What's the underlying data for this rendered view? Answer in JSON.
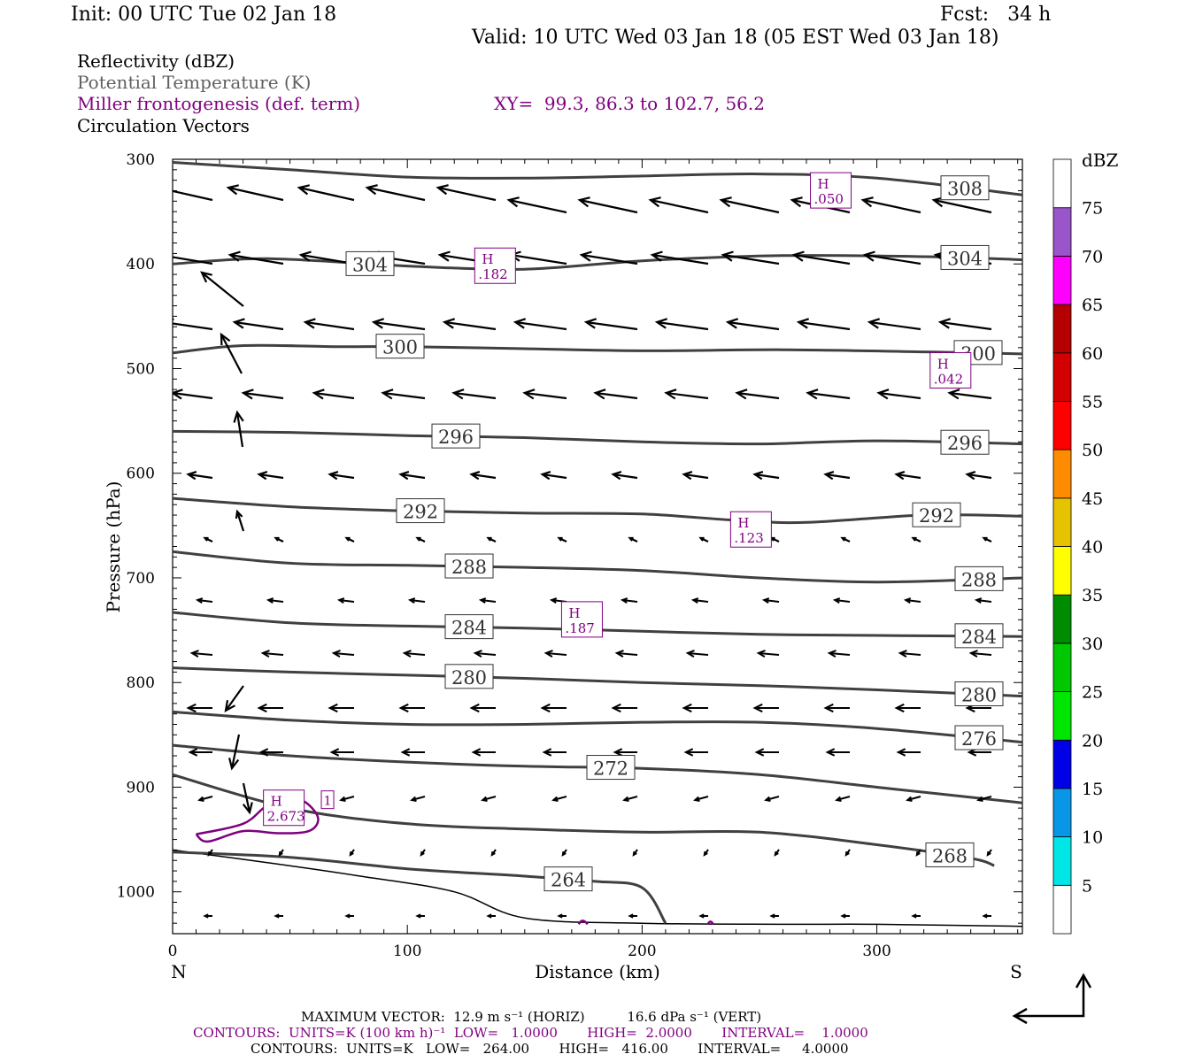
{
  "header": {
    "init": "Init: 00 UTC Tue 02 Jan 18",
    "fcst": "Fcst:   34 h",
    "valid": "Valid: 10 UTC Wed 03 Jan 18 (05 EST Wed 03 Jan 18)"
  },
  "fields": {
    "reflectivity": "Reflectivity (dBZ)",
    "theta": "Potential Temperature (K)",
    "miller": "Miller frontogenesis (def. term)",
    "xy": "XY=  99.3, 86.3 to 102.7, 56.2",
    "vectors": "Circulation Vectors"
  },
  "colors": {
    "theta": "#404040",
    "miller": "#800080",
    "vector": "#000000"
  },
  "colorbar": {
    "title": "dBZ",
    "ticks": [
      "5",
      "10",
      "15",
      "20",
      "25",
      "30",
      "35",
      "40",
      "45",
      "50",
      "55",
      "60",
      "65",
      "70",
      "75"
    ],
    "colors": [
      "#ffffff",
      "#00e6e6",
      "#0a96e6",
      "#0000e6",
      "#00e600",
      "#00c800",
      "#008c00",
      "#ffff00",
      "#e6c300",
      "#ff8c00",
      "#ff0000",
      "#d20000",
      "#b40000",
      "#ff00ff",
      "#9955c9",
      "#ffffff"
    ]
  },
  "footer": {
    "max_vector": "MAXIMUM VECTOR:  12.9 m s⁻¹ (HORIZ)          16.6 dPa s⁻¹ (VERT)",
    "contours_miller": "CONTOURS:  UNITS=K (100 km h)⁻¹  LOW=   1.0000       HIGH=  2.0000       INTERVAL=    1.0000",
    "contours_theta": "CONTOURS:  UNITS=K   LOW=   264.00       HIGH=   416.00       INTERVAL=     4.0000"
  },
  "chart_data": {
    "type": "line",
    "title": "",
    "xlabel": "Distance (km)",
    "ylabel": "Pressure (hPa)",
    "x_left_label": "N",
    "x_right_label": "S",
    "xlim": [
      0,
      362
    ],
    "ylim": [
      300,
      1040
    ],
    "y_inverted": true,
    "xticks": [
      0,
      100,
      200,
      300
    ],
    "yticks": [
      300,
      400,
      500,
      600,
      700,
      800,
      900,
      1000
    ],
    "theta_contours": [
      {
        "value": 308,
        "x": [
          0,
          50,
          100,
          150,
          200,
          250,
          300,
          362
        ],
        "p": [
          303,
          310,
          317,
          318,
          316,
          314,
          318,
          334
        ]
      },
      {
        "value": 304,
        "x": [
          0,
          40,
          100,
          150,
          200,
          260,
          320,
          362
        ],
        "p": [
          400,
          395,
          402,
          405,
          397,
          392,
          393,
          396
        ]
      },
      {
        "value": 300,
        "x": [
          0,
          30,
          70,
          100,
          150,
          200,
          260,
          320,
          362
        ],
        "p": [
          485,
          478,
          479,
          479,
          481,
          483,
          482,
          484,
          486
        ]
      },
      {
        "value": 296,
        "x": [
          0,
          50,
          100,
          150,
          200,
          250,
          300,
          362
        ],
        "p": [
          560,
          561,
          564,
          566,
          570,
          572,
          569,
          572
        ]
      },
      {
        "value": 292,
        "x": [
          0,
          50,
          100,
          150,
          200,
          240,
          270,
          320,
          362
        ],
        "p": [
          624,
          632,
          636,
          638,
          639,
          645,
          647,
          640,
          641
        ]
      },
      {
        "value": 288,
        "x": [
          0,
          50,
          100,
          150,
          200,
          250,
          300,
          362
        ],
        "p": [
          675,
          686,
          688,
          690,
          693,
          700,
          704,
          700
        ]
      },
      {
        "value": 284,
        "x": [
          0,
          50,
          100,
          150,
          200,
          250,
          300,
          362
        ],
        "p": [
          733,
          743,
          746,
          748,
          751,
          754,
          755,
          756
        ]
      },
      {
        "value": 280,
        "x": [
          0,
          50,
          100,
          150,
          200,
          250,
          300,
          362
        ],
        "p": [
          786,
          790,
          793,
          796,
          800,
          803,
          807,
          813
        ]
      },
      {
        "value": 276,
        "x": [
          0,
          50,
          100,
          150,
          200,
          250,
          300,
          362
        ],
        "p": [
          828,
          836,
          840,
          840,
          838,
          838,
          844,
          857
        ]
      },
      {
        "value": 272,
        "x": [
          0,
          50,
          100,
          150,
          200,
          250,
          300,
          362
        ],
        "p": [
          860,
          870,
          876,
          880,
          882,
          888,
          900,
          915
        ]
      },
      {
        "value": 268,
        "x": [
          0,
          50,
          100,
          150,
          200,
          250,
          300,
          340,
          350
        ],
        "p": [
          888,
          920,
          935,
          940,
          943,
          943,
          955,
          968,
          975
        ]
      },
      {
        "value": 264,
        "x": [
          0,
          50,
          100,
          150,
          180,
          200,
          210
        ],
        "p": [
          962,
          967,
          978,
          985,
          990,
          996,
          1030
        ]
      }
    ],
    "terrain": {
      "x": [
        0,
        40,
        80,
        120,
        150,
        200,
        260,
        300,
        362
      ],
      "p": [
        960,
        972,
        985,
        1000,
        1025,
        1030,
        1031,
        1031,
        1033
      ]
    },
    "miller_highs": [
      {
        "x": 280,
        "p": 328,
        "label": "H",
        "value": ".050"
      },
      {
        "x": 137,
        "p": 400,
        "label": "H",
        "value": ".182"
      },
      {
        "x": 331,
        "p": 500,
        "label": "H",
        "value": ".042"
      },
      {
        "x": 246,
        "p": 652,
        "label": "H",
        "value": ".123"
      },
      {
        "x": 174,
        "p": 738,
        "label": "H",
        "value": ".187"
      },
      {
        "x": 47,
        "p": 918,
        "label": "H",
        "value": "2.673"
      }
    ],
    "miller_contour_labels": [
      {
        "x": 66,
        "p": 912,
        "label": "1"
      }
    ],
    "vectors_note": "circulation vectors pointing northward (toward N); upper levels stronger"
  }
}
